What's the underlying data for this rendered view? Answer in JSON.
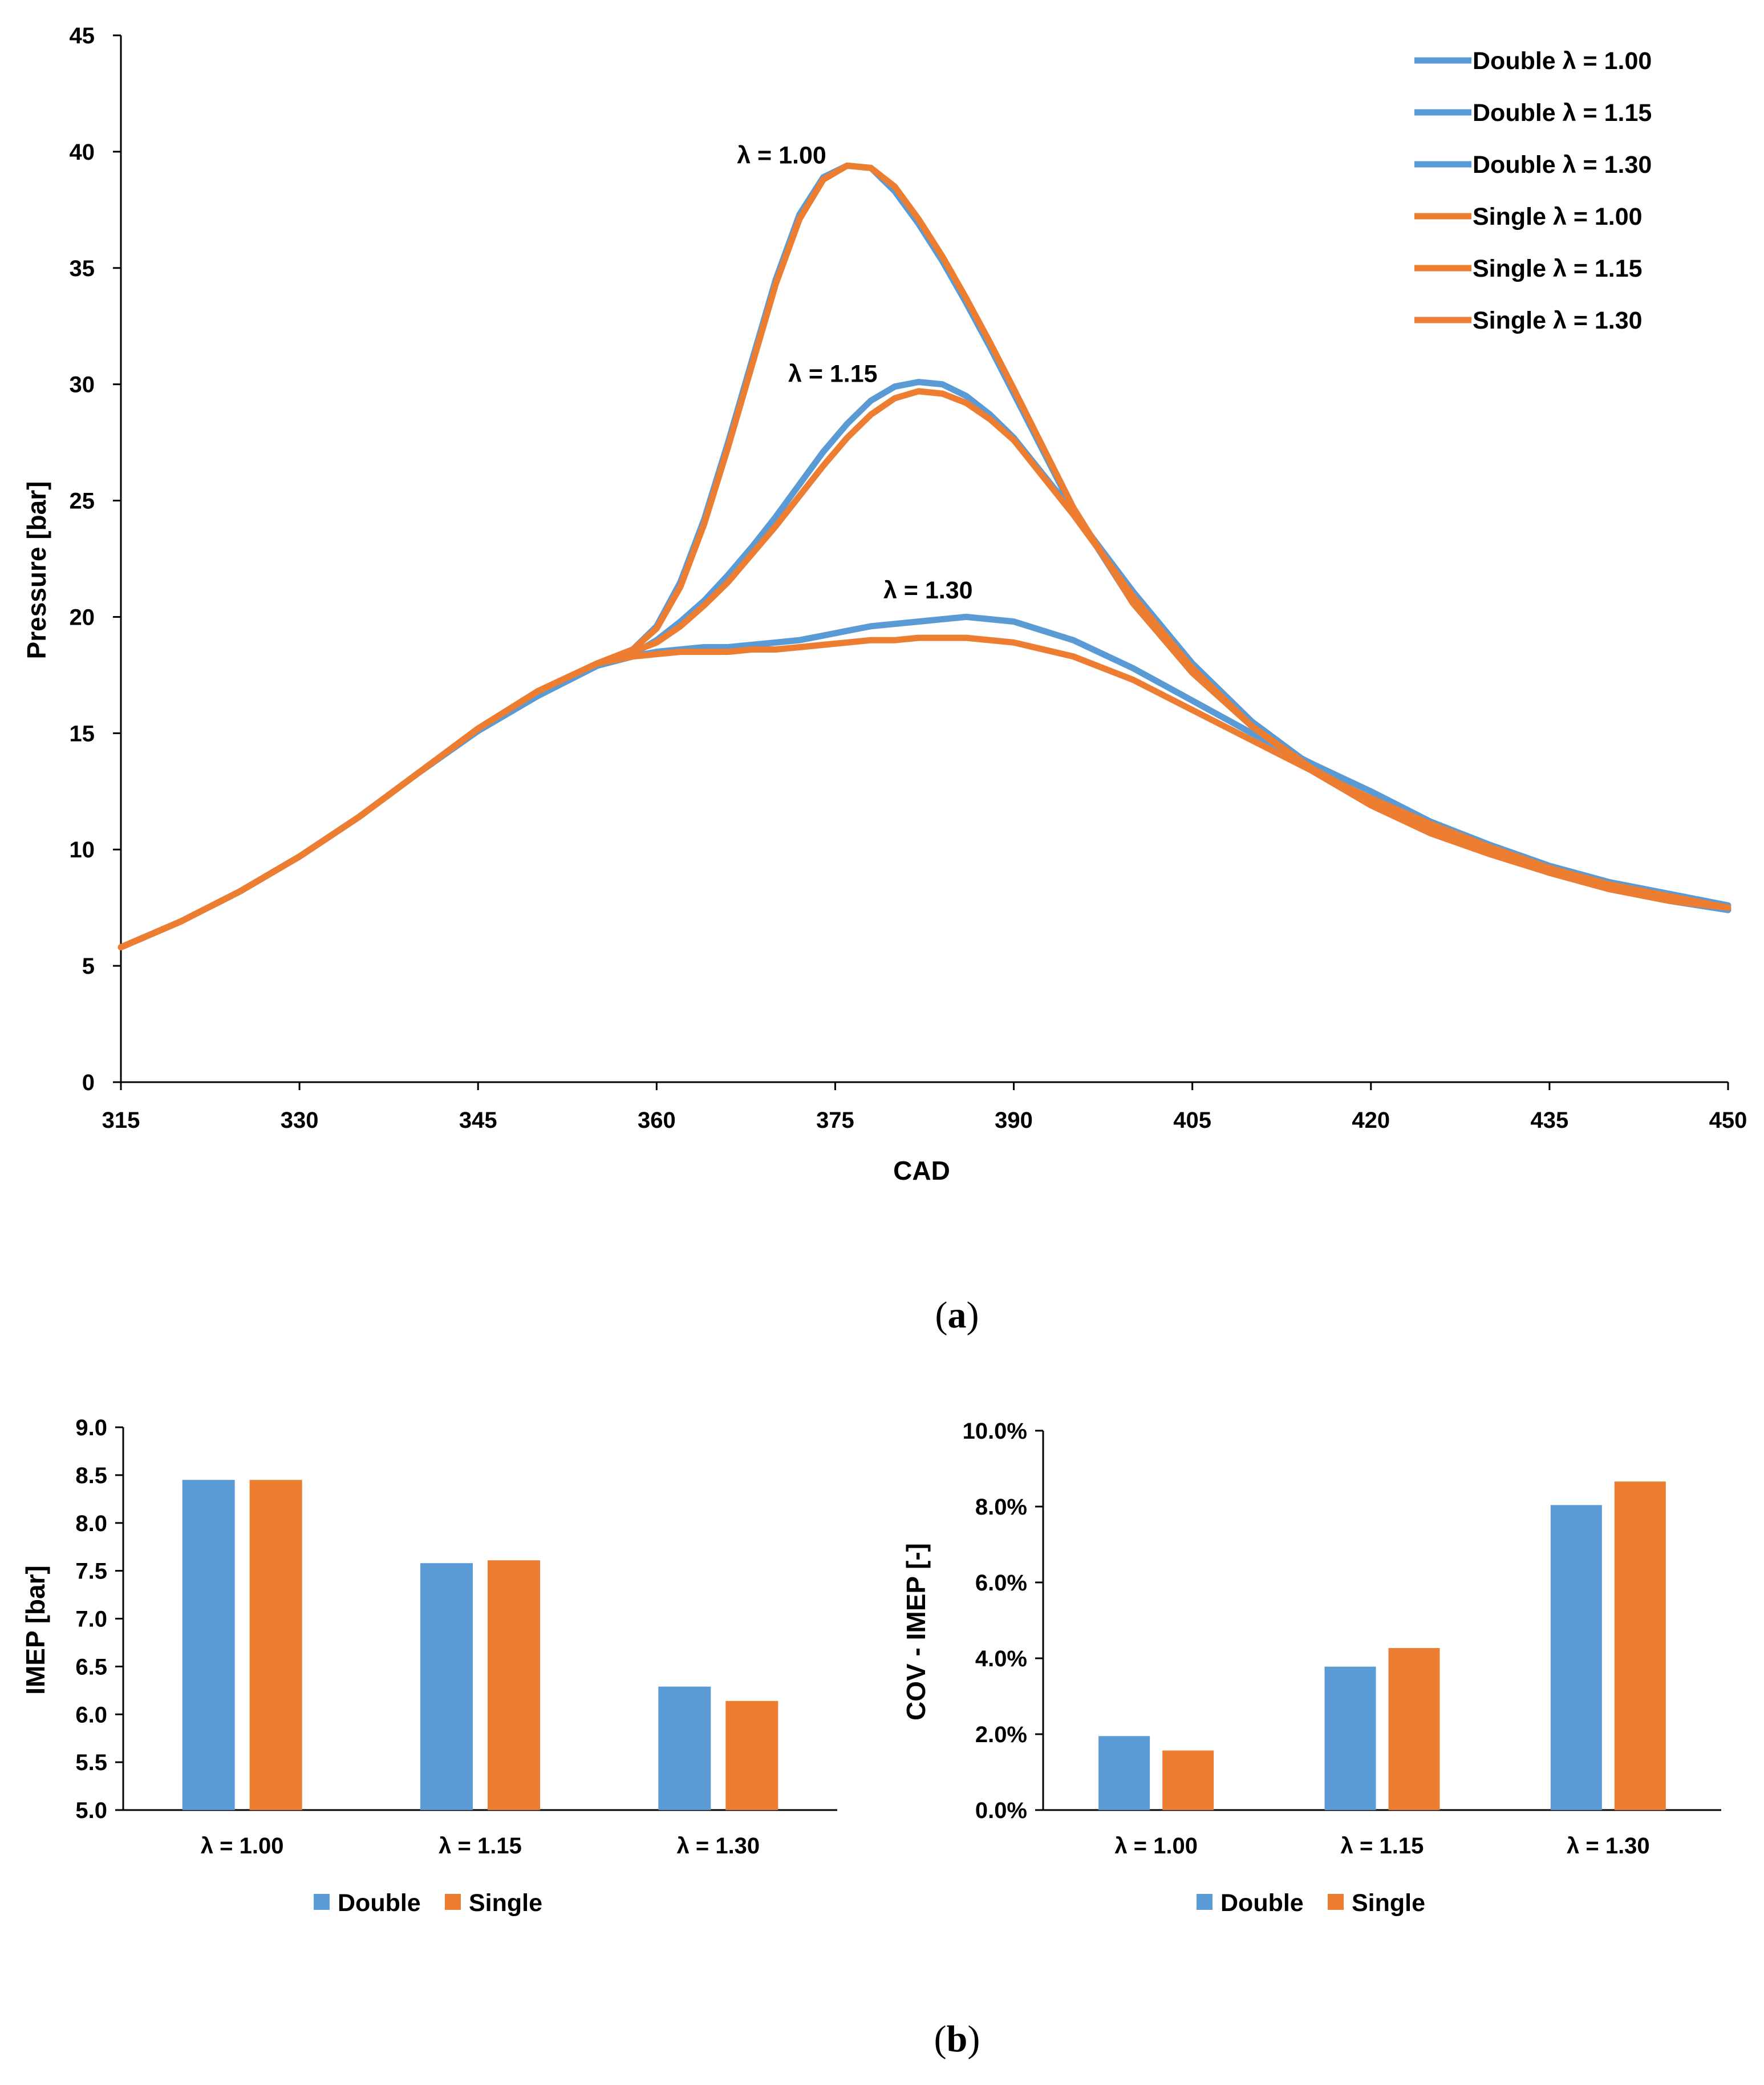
{
  "colors": {
    "double": "#5b9bd5",
    "single": "#ed7d31",
    "axis": "#000000"
  },
  "panel_labels": {
    "a_open": "(",
    "a_letter": "a",
    "a_close": ")",
    "b_open": "(",
    "b_letter": "b",
    "b_close": ")"
  },
  "chart_data": [
    {
      "id": "pressure",
      "type": "line",
      "title": "",
      "xlabel": "CAD",
      "ylabel": "Pressure [bar]",
      "xlim": [
        315,
        450
      ],
      "ylim": [
        0,
        45
      ],
      "xticks": [
        "315",
        "330",
        "345",
        "360",
        "375",
        "390",
        "405",
        "420",
        "435",
        "450"
      ],
      "yticks": [
        "0",
        "5",
        "10",
        "15",
        "20",
        "25",
        "30",
        "35",
        "40",
        "45"
      ],
      "legend_position": "top-right",
      "annotations": [
        {
          "text": "λ = 1.00",
          "x": 370.5,
          "y": 39.5
        },
        {
          "text": "λ = 1.15",
          "x": 374.8,
          "y": 30.1
        },
        {
          "text": "λ = 1.30",
          "x": 382.8,
          "y": 20.8
        }
      ],
      "series": [
        {
          "name": "Double λ = 1.00",
          "group": "double",
          "x": [
            315,
            320,
            325,
            330,
            335,
            340,
            345,
            350,
            355,
            358,
            360,
            362,
            364,
            366,
            368,
            370,
            372,
            374,
            376,
            378,
            380,
            382,
            384,
            386,
            388,
            390,
            395,
            400,
            405,
            410,
            415,
            420,
            425,
            430,
            435,
            440,
            445,
            450
          ],
          "y": [
            5.8,
            6.9,
            8.2,
            9.7,
            11.4,
            13.3,
            15.1,
            16.6,
            17.9,
            18.6,
            19.6,
            21.5,
            24.2,
            27.5,
            31.0,
            34.5,
            37.3,
            38.9,
            39.4,
            39.3,
            38.3,
            36.9,
            35.3,
            33.5,
            31.6,
            29.6,
            24.6,
            20.6,
            17.6,
            15.3,
            13.5,
            12.1,
            10.9,
            9.9,
            9.0,
            8.3,
            7.8,
            7.4
          ]
        },
        {
          "name": "Double λ = 1.15",
          "group": "double",
          "x": [
            315,
            320,
            325,
            330,
            335,
            340,
            345,
            350,
            355,
            358,
            360,
            362,
            364,
            366,
            368,
            370,
            372,
            374,
            376,
            378,
            380,
            382,
            384,
            386,
            388,
            390,
            395,
            400,
            405,
            410,
            415,
            420,
            425,
            430,
            435,
            440,
            445,
            450
          ],
          "y": [
            5.8,
            6.9,
            8.2,
            9.7,
            11.4,
            13.3,
            15.1,
            16.6,
            17.9,
            18.4,
            19.0,
            19.8,
            20.7,
            21.8,
            23.0,
            24.3,
            25.7,
            27.1,
            28.3,
            29.3,
            29.9,
            30.1,
            30.0,
            29.5,
            28.7,
            27.7,
            24.5,
            21.1,
            18.0,
            15.5,
            13.6,
            12.1,
            10.9,
            9.9,
            9.0,
            8.3,
            7.8,
            7.4
          ]
        },
        {
          "name": "Double λ = 1.30",
          "group": "double",
          "x": [
            315,
            320,
            325,
            330,
            335,
            340,
            345,
            350,
            355,
            358,
            360,
            362,
            364,
            366,
            368,
            370,
            372,
            374,
            376,
            378,
            380,
            382,
            384,
            386,
            388,
            390,
            395,
            400,
            405,
            410,
            415,
            420,
            425,
            430,
            435,
            440,
            445,
            450
          ],
          "y": [
            5.8,
            6.9,
            8.2,
            9.7,
            11.4,
            13.3,
            15.1,
            16.6,
            17.9,
            18.3,
            18.5,
            18.6,
            18.7,
            18.7,
            18.8,
            18.9,
            19.0,
            19.2,
            19.4,
            19.6,
            19.7,
            19.8,
            19.9,
            20.0,
            19.9,
            19.8,
            19.0,
            17.8,
            16.4,
            15.0,
            13.7,
            12.5,
            11.2,
            10.2,
            9.3,
            8.6,
            8.1,
            7.6
          ]
        },
        {
          "name": "Single λ = 1.00",
          "group": "single",
          "x": [
            315,
            320,
            325,
            330,
            335,
            340,
            345,
            350,
            355,
            358,
            360,
            362,
            364,
            366,
            368,
            370,
            372,
            374,
            376,
            378,
            380,
            382,
            384,
            386,
            388,
            390,
            395,
            400,
            405,
            410,
            415,
            420,
            425,
            430,
            435,
            440,
            445,
            450
          ],
          "y": [
            5.8,
            6.9,
            8.2,
            9.7,
            11.4,
            13.3,
            15.2,
            16.8,
            18.0,
            18.6,
            19.5,
            21.3,
            24.0,
            27.3,
            30.8,
            34.3,
            37.1,
            38.8,
            39.4,
            39.3,
            38.5,
            37.1,
            35.5,
            33.7,
            31.8,
            29.8,
            24.7,
            20.6,
            17.6,
            15.3,
            13.5,
            12.1,
            10.9,
            9.9,
            9.0,
            8.3,
            7.8,
            7.5
          ]
        },
        {
          "name": "Single λ = 1.15",
          "group": "single",
          "x": [
            315,
            320,
            325,
            330,
            335,
            340,
            345,
            350,
            355,
            358,
            360,
            362,
            364,
            366,
            368,
            370,
            372,
            374,
            376,
            378,
            380,
            382,
            384,
            386,
            388,
            390,
            395,
            400,
            405,
            410,
            415,
            420,
            425,
            430,
            435,
            440,
            445,
            450
          ],
          "y": [
            5.8,
            6.9,
            8.2,
            9.7,
            11.4,
            13.3,
            15.2,
            16.8,
            18.0,
            18.5,
            18.9,
            19.6,
            20.5,
            21.5,
            22.7,
            23.9,
            25.2,
            26.5,
            27.7,
            28.7,
            29.4,
            29.7,
            29.6,
            29.2,
            28.5,
            27.6,
            24.4,
            20.9,
            17.8,
            15.3,
            13.4,
            11.9,
            10.7,
            9.8,
            9.0,
            8.3,
            7.8,
            7.5
          ]
        },
        {
          "name": "Single λ = 1.30",
          "group": "single",
          "x": [
            315,
            320,
            325,
            330,
            335,
            340,
            345,
            350,
            355,
            358,
            360,
            362,
            364,
            366,
            368,
            370,
            372,
            374,
            376,
            378,
            380,
            382,
            384,
            386,
            388,
            390,
            395,
            400,
            405,
            410,
            415,
            420,
            425,
            430,
            435,
            440,
            445,
            450
          ],
          "y": [
            5.8,
            6.9,
            8.2,
            9.7,
            11.4,
            13.3,
            15.2,
            16.8,
            18.0,
            18.3,
            18.4,
            18.5,
            18.5,
            18.5,
            18.6,
            18.6,
            18.7,
            18.8,
            18.9,
            19.0,
            19.0,
            19.1,
            19.1,
            19.1,
            19.0,
            18.9,
            18.3,
            17.3,
            16.0,
            14.7,
            13.4,
            12.2,
            11.1,
            10.1,
            9.2,
            8.5,
            8.0,
            7.5
          ]
        }
      ]
    },
    {
      "id": "imep",
      "type": "bar",
      "title": "",
      "xlabel": "",
      "ylabel": "IMEP [bar]",
      "categories": [
        "λ = 1.00",
        "λ = 1.15",
        "λ = 1.30"
      ],
      "ylim": [
        5.0,
        9.0
      ],
      "yticks": [
        "5.0",
        "5.5",
        "6.0",
        "6.5",
        "7.0",
        "7.5",
        "8.0",
        "8.5",
        "9.0"
      ],
      "legend_position": "bottom",
      "series": [
        {
          "name": "Double",
          "group": "double",
          "values": [
            8.45,
            7.58,
            6.29
          ]
        },
        {
          "name": "Single",
          "group": "single",
          "values": [
            8.45,
            7.61,
            6.14
          ]
        }
      ]
    },
    {
      "id": "cov",
      "type": "bar",
      "title": "",
      "xlabel": "",
      "ylabel": "COV - IMEP [-]",
      "categories": [
        "λ = 1.00",
        "λ = 1.15",
        "λ = 1.30"
      ],
      "ylim": [
        0.0,
        10.0
      ],
      "yticks": [
        "0.0%",
        "2.0%",
        "4.0%",
        "6.0%",
        "8.0%",
        "10.0%"
      ],
      "legend_position": "bottom",
      "series": [
        {
          "name": "Double",
          "group": "double",
          "values": [
            1.95,
            3.78,
            8.04
          ]
        },
        {
          "name": "Single",
          "group": "single",
          "values": [
            1.57,
            4.27,
            8.66
          ]
        }
      ]
    }
  ]
}
